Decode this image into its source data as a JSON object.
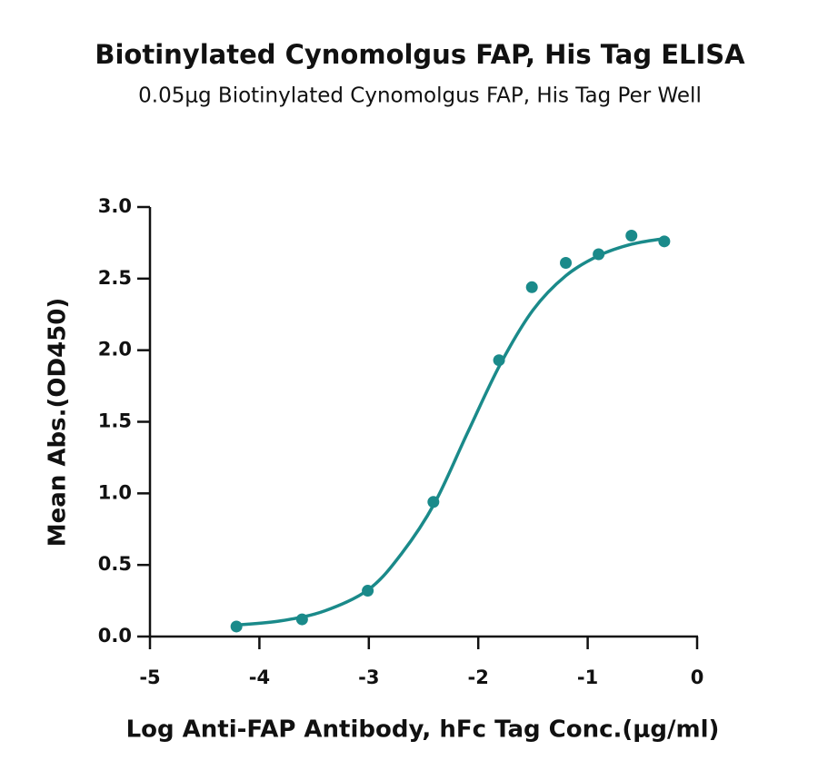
{
  "chart_data": {
    "type": "scatter",
    "title": "Biotinylated Cynomolgus FAP, His Tag ELISA",
    "subtitle": "0.05μg Biotinylated Cynomolgus FAP, His Tag Per Well",
    "x_label": "Log Anti-FAP Antibody, hFc Tag Conc.(μg/ml)",
    "y_label": "Mean Abs.(OD450)",
    "series": [
      {
        "color": "#1a8a8a",
        "x": [
          -4.21,
          -3.61,
          -3.01,
          -2.41,
          -1.81,
          -1.51,
          -1.2,
          -0.9,
          -0.6,
          -0.3
        ],
        "values": [
          0.07,
          0.12,
          0.32,
          0.94,
          1.93,
          2.44,
          2.61,
          2.67,
          2.8,
          2.76
        ]
      }
    ],
    "fit": {
      "color": "#1a8a8a",
      "x": [
        -4.21,
        -3.8,
        -3.4,
        -3.0,
        -2.7,
        -2.4,
        -2.1,
        -1.8,
        -1.5,
        -1.2,
        -0.9,
        -0.6,
        -0.3
      ],
      "values": [
        0.08,
        0.11,
        0.18,
        0.33,
        0.58,
        0.93,
        1.42,
        1.9,
        2.28,
        2.52,
        2.66,
        2.74,
        2.78
      ]
    },
    "xlim": [
      -5,
      0
    ],
    "xticks": [
      -5,
      -4,
      -3,
      -2,
      -1,
      0
    ],
    "ylim": [
      0,
      3
    ],
    "yticks": [
      {
        "value": 0,
        "label": "0.0"
      },
      0.5,
      {
        "value": 1,
        "label": "1.0"
      },
      1.5,
      {
        "value": 2,
        "label": "2.0"
      },
      2.5,
      {
        "value": 3,
        "label": "3.0"
      }
    ]
  }
}
